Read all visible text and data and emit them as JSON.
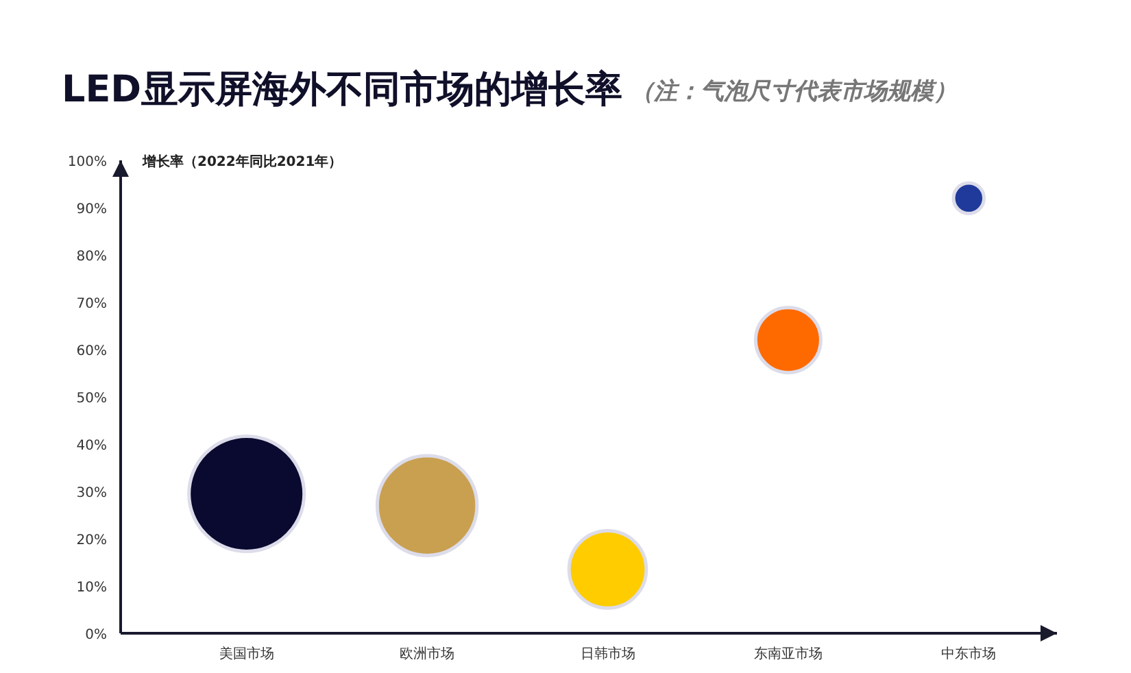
{
  "chart_data": {
    "type": "bubble",
    "title": "LED显示屏海外不同市场的增长率",
    "subtitle": "（注：气泡尺寸代表市场规模）",
    "ylabel": "增长率（2022年同比2021年）",
    "categories": [
      "美国市场",
      "欧洲市场",
      "日韩市场",
      "东南亚市场",
      "中东市场"
    ],
    "values": [
      29.5,
      27,
      13.5,
      62,
      92
    ],
    "sizes": [
      1,
      0.75,
      0.45,
      0.32,
      0.07
    ],
    "colors": [
      "#0a0a30",
      "#c9a050",
      "#ffcc00",
      "#ff6a00",
      "#1f3a9a"
    ],
    "ylim": [
      0,
      100
    ],
    "yticks": [
      {
        "value": 0,
        "label": "0%"
      },
      {
        "value": 10,
        "label": "10%"
      },
      {
        "value": 20,
        "label": "20%"
      },
      {
        "value": 30,
        "label": "30%"
      },
      {
        "value": 40,
        "label": "40%"
      },
      {
        "value": 50,
        "label": "50%"
      },
      {
        "value": 60,
        "label": "60%"
      },
      {
        "value": 70,
        "label": "70%"
      },
      {
        "value": 80,
        "label": "80%"
      },
      {
        "value": 90,
        "label": "90%"
      },
      {
        "value": 100,
        "label": "100%"
      }
    ]
  }
}
